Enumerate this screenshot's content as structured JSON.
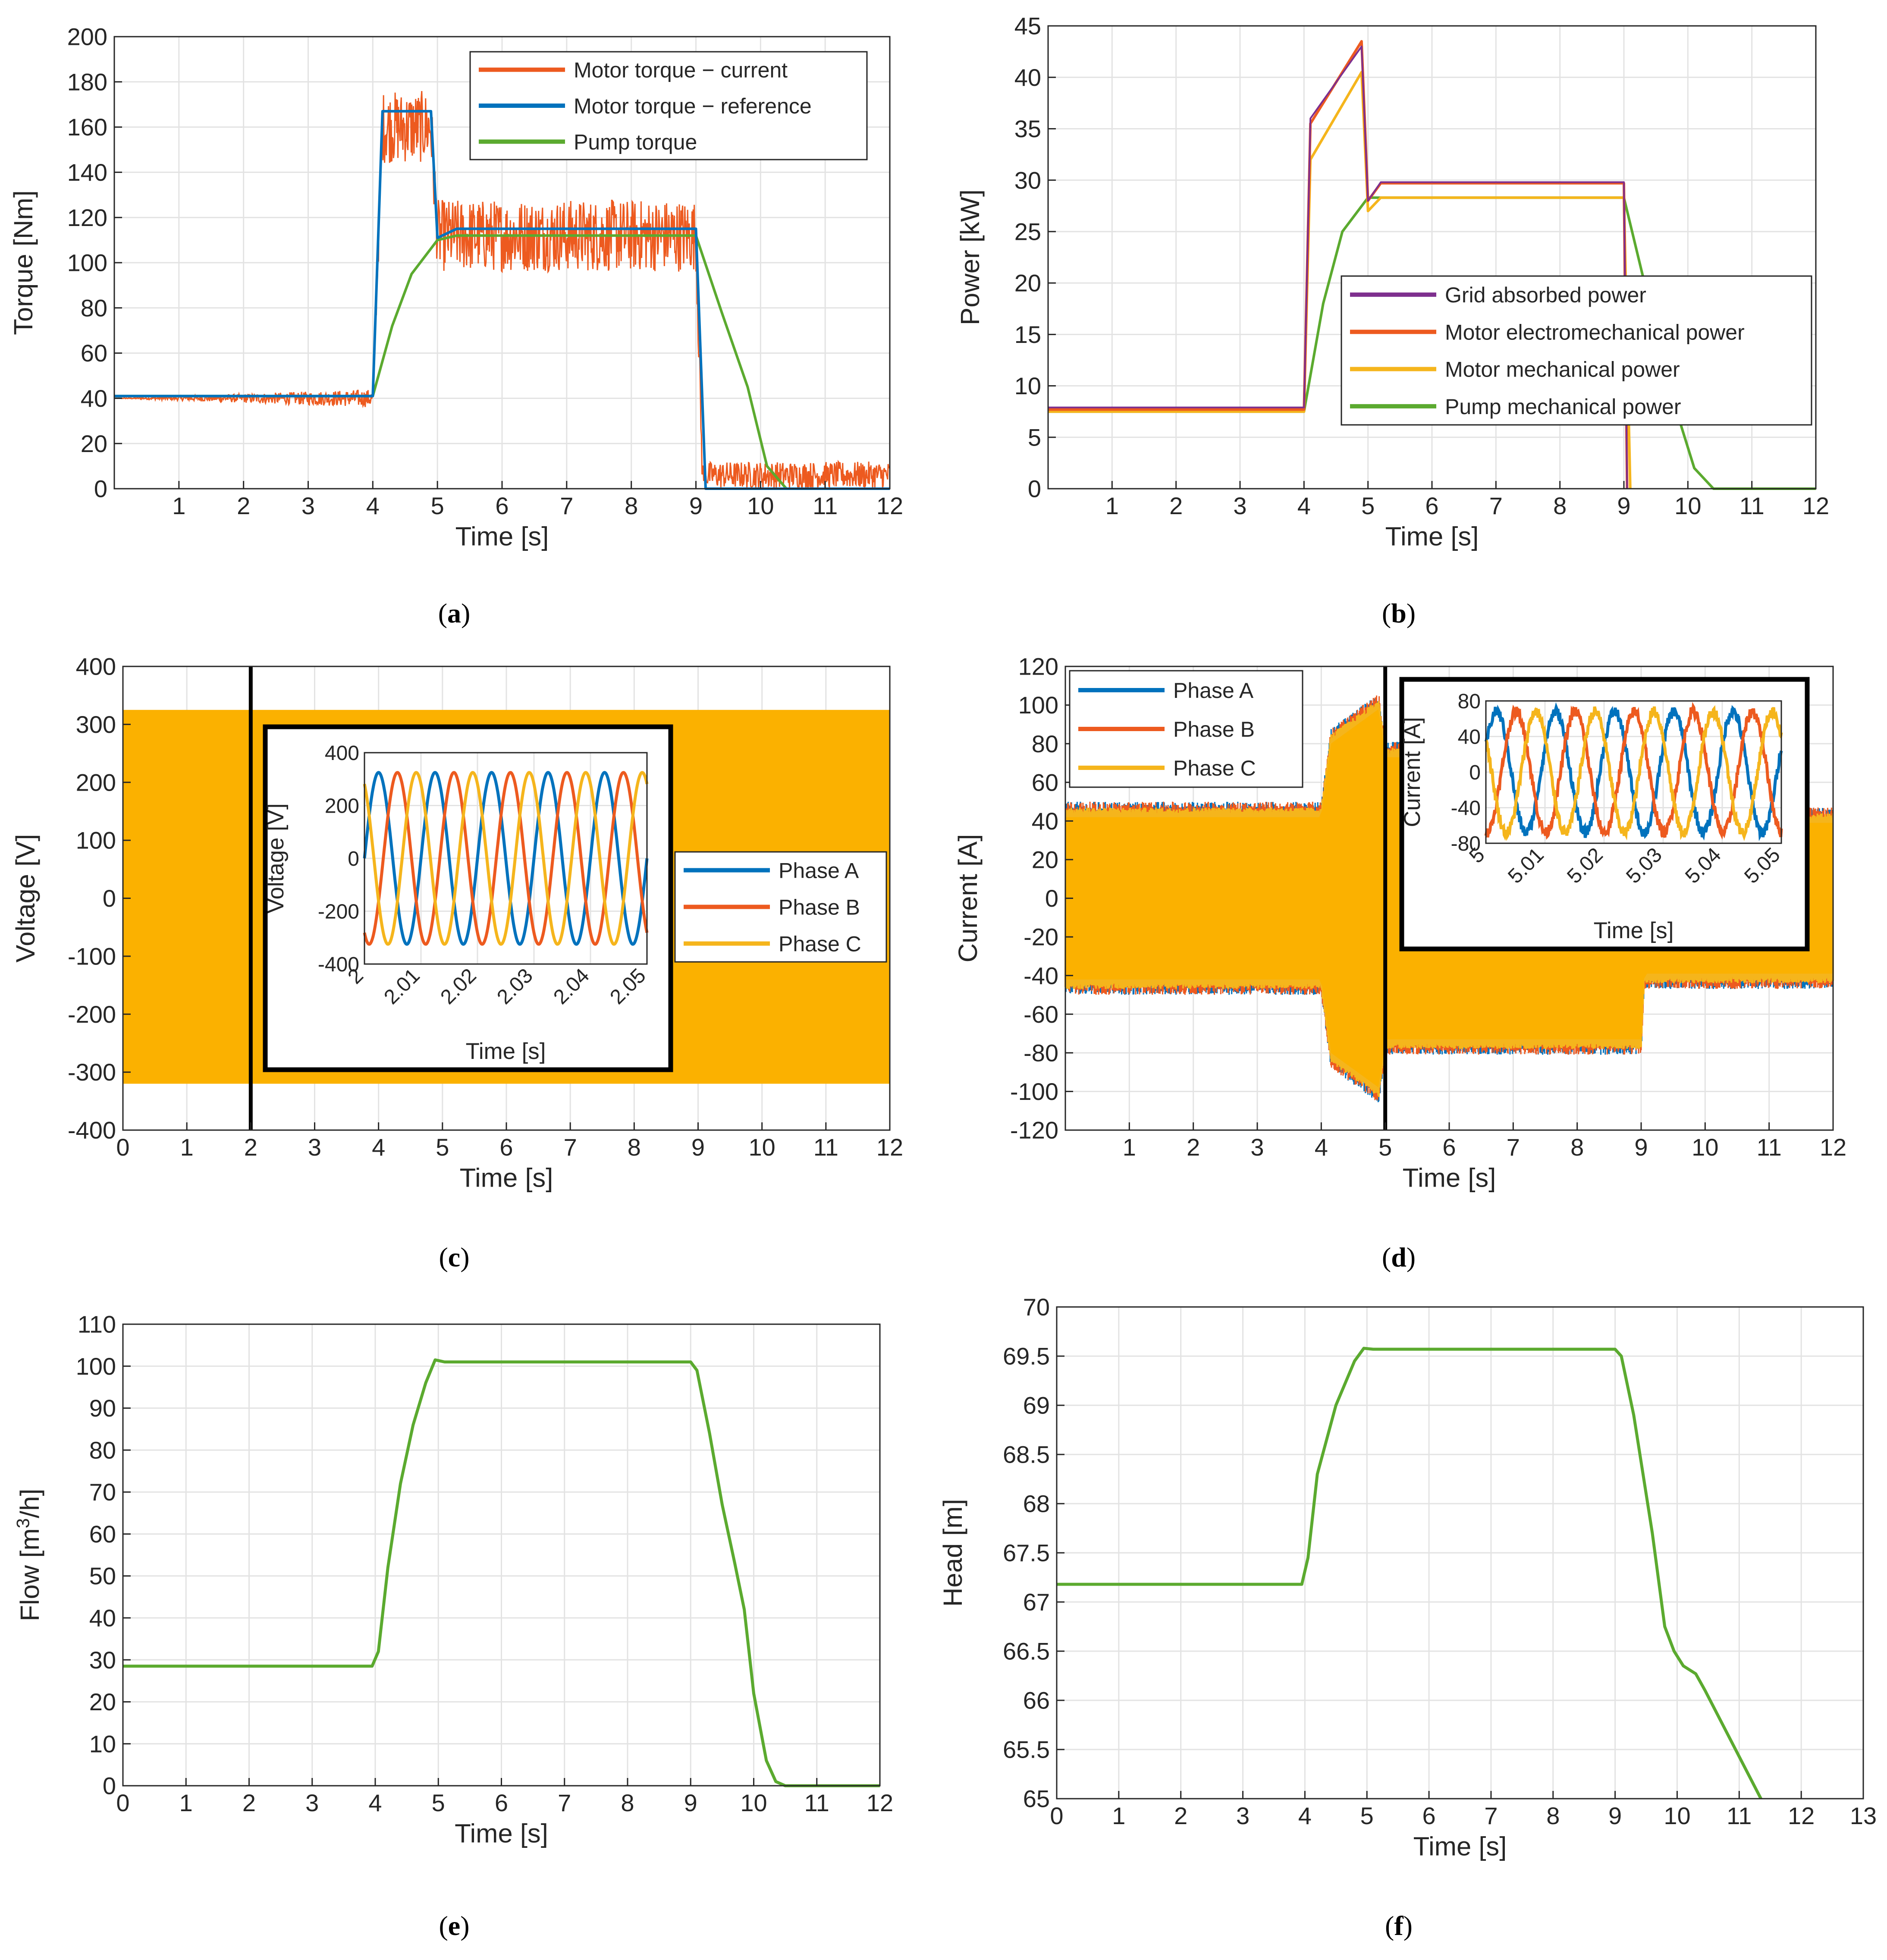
{
  "figure": {
    "captions": [
      "(a)",
      "(b)",
      "(c)",
      "(d)",
      "(e)",
      "(f)"
    ],
    "letters": [
      "a",
      "b",
      "c",
      "d",
      "e",
      "f"
    ]
  },
  "chart_data": [
    {
      "id": "a",
      "type": "line",
      "xlabel": "Time [s]",
      "ylabel": "Torque [Nm]",
      "xlim": [
        0,
        12
      ],
      "ylim": [
        0,
        200
      ],
      "xticks": [
        1,
        2,
        3,
        4,
        5,
        6,
        7,
        8,
        9,
        10,
        11,
        12
      ],
      "yticks": [
        0,
        20,
        40,
        60,
        80,
        100,
        120,
        140,
        160,
        180,
        200
      ],
      "grid": true,
      "legend_position": "top-right",
      "series": [
        {
          "name": "Motor torque − current",
          "color": "#ED5A1F",
          "noisy": true,
          "x": [
            0,
            4,
            4.15,
            4.9,
            5.0,
            9.0,
            9.1,
            12
          ],
          "y": [
            40,
            40,
            160,
            160,
            112,
            112,
            6,
            6
          ],
          "band": [
            0,
            4,
            16,
            16,
            16,
            16,
            6,
            6
          ]
        },
        {
          "name": "Motor torque − reference",
          "color": "#0072BD",
          "x": [
            0,
            4,
            4.15,
            4.9,
            5.0,
            5.3,
            9.0,
            9.15,
            12
          ],
          "y": [
            41,
            41,
            167,
            167,
            111,
            115,
            115,
            0,
            0
          ]
        },
        {
          "name": "Pump torque",
          "color": "#5BAA2F",
          "x": [
            0,
            4,
            4.3,
            4.6,
            5,
            5.3,
            9,
            9.4,
            9.8,
            10.1,
            10.4,
            12
          ],
          "y": [
            41,
            41,
            72,
            95,
            110,
            112,
            112,
            78,
            45,
            10,
            0,
            0
          ]
        }
      ]
    },
    {
      "id": "b",
      "type": "line",
      "xlabel": "Time [s]",
      "ylabel": "Power [kW]",
      "xlim": [
        0,
        12
      ],
      "ylim": [
        0,
        45
      ],
      "xticks": [
        1,
        2,
        3,
        4,
        5,
        6,
        7,
        8,
        9,
        10,
        11,
        12
      ],
      "yticks": [
        0,
        5,
        10,
        15,
        20,
        25,
        30,
        35,
        40,
        45
      ],
      "grid": true,
      "legend_position": "center-right",
      "series": [
        {
          "name": "Grid absorbed power",
          "color": "#7E2F8E",
          "x": [
            0,
            4,
            4.1,
            4.9,
            5.0,
            5.2,
            9.0,
            9.05
          ],
          "y": [
            7.9,
            7.9,
            36,
            43,
            28,
            29.8,
            29.8,
            0
          ]
        },
        {
          "name": "Motor electromechanical power",
          "color": "#ED5A1F",
          "x": [
            0,
            4,
            4.1,
            4.9,
            5.0,
            5.2,
            9.0,
            9.05
          ],
          "y": [
            7.7,
            7.7,
            35.5,
            43.5,
            28,
            29.7,
            29.7,
            0
          ]
        },
        {
          "name": "Motor mechanical power",
          "color": "#F5B51C",
          "x": [
            0,
            4,
            4.1,
            4.9,
            5.0,
            5.2,
            9.0,
            9.1
          ],
          "y": [
            7.5,
            7.5,
            32,
            40.5,
            27,
            28.3,
            28.3,
            0
          ]
        },
        {
          "name": "Pump mechanical power",
          "color": "#5BAA2F",
          "x": [
            0,
            4,
            4.3,
            4.6,
            5,
            9,
            9.4,
            9.8,
            10.1,
            10.4,
            12
          ],
          "y": [
            7.5,
            7.5,
            18,
            25,
            28.3,
            28.3,
            18,
            8,
            2,
            0,
            0
          ]
        }
      ]
    },
    {
      "id": "c",
      "type": "line",
      "xlabel": "Time [s]",
      "ylabel": "Voltage [V]",
      "xlim": [
        0,
        12
      ],
      "ylim": [
        -400,
        400
      ],
      "xticks": [
        0,
        1,
        2,
        3,
        4,
        5,
        6,
        7,
        8,
        9,
        10,
        11,
        12
      ],
      "yticks": [
        -400,
        -300,
        -200,
        -100,
        0,
        100,
        200,
        300,
        400
      ],
      "grid": true,
      "band": {
        "color": "#FBB100",
        "x": [
          0,
          12
        ],
        "min": -320,
        "max": 325
      },
      "marker_x": 2,
      "legend_position": "center-right",
      "series": [
        {
          "name": "Phase A",
          "color": "#0072BD"
        },
        {
          "name": "Phase B",
          "color": "#ED5A1F"
        },
        {
          "name": "Phase C",
          "color": "#F5B51C"
        }
      ],
      "inset": {
        "xlabel": "Time [s]",
        "ylabel": "Voltage [V]",
        "xlim": [
          2,
          2.05
        ],
        "ylim": [
          -400,
          400
        ],
        "xticks": [
          "2",
          "2.01",
          "2.02",
          "2.03",
          "2.04",
          "2.05"
        ],
        "yticks": [
          -400,
          -200,
          0,
          200,
          400
        ],
        "amplitude": 325,
        "frequency_hz": 100,
        "phases_deg": [
          0,
          -120,
          120
        ]
      }
    },
    {
      "id": "d",
      "type": "line",
      "xlabel": "Time [s]",
      "ylabel": "Current [A]",
      "xlim": [
        0,
        12
      ],
      "ylim": [
        -120,
        120
      ],
      "xticks": [
        1,
        2,
        3,
        4,
        5,
        6,
        7,
        8,
        9,
        10,
        11,
        12
      ],
      "yticks": [
        -120,
        -100,
        -80,
        -60,
        -40,
        -20,
        0,
        20,
        40,
        60,
        80,
        100,
        120
      ],
      "grid": true,
      "envelope": {
        "x": [
          0,
          4,
          4.15,
          4.9,
          5.0,
          5.2,
          9.0,
          9.05,
          12
        ],
        "amp": [
          44,
          44,
          82,
          100,
          75,
          75,
          75,
          41,
          41
        ]
      },
      "marker_x": 5,
      "legend_position": "top-left",
      "series": [
        {
          "name": "Phase A",
          "color": "#0072BD"
        },
        {
          "name": "Phase B",
          "color": "#ED5A1F"
        },
        {
          "name": "Phase C",
          "color": "#F5B51C"
        }
      ],
      "inset": {
        "xlabel": "Time [s]",
        "ylabel": "Current [A]",
        "xlim": [
          5,
          5.05
        ],
        "ylim": [
          -80,
          80
        ],
        "xticks": [
          "5",
          "5.01",
          "5.02",
          "5.03",
          "5.04",
          "5.05"
        ],
        "yticks": [
          -80,
          -40,
          0,
          40,
          80
        ],
        "amplitude": 68,
        "frequency_hz": 100,
        "phases_deg": [
          25,
          -95,
          145
        ]
      }
    },
    {
      "id": "e",
      "type": "line",
      "xlabel": "Time [s]",
      "ylabel": "Flow [m³/h]",
      "ylabel_parts": [
        "Flow [m",
        "3",
        "/h]"
      ],
      "xlim": [
        0,
        12
      ],
      "ylim": [
        0,
        110
      ],
      "xticks": [
        0,
        1,
        2,
        3,
        4,
        5,
        6,
        7,
        8,
        9,
        10,
        11,
        12
      ],
      "yticks": [
        0,
        10,
        20,
        30,
        40,
        50,
        60,
        70,
        80,
        90,
        100,
        110
      ],
      "grid": true,
      "series": [
        {
          "name": "Flow",
          "color": "#5BAA2F",
          "x": [
            0,
            3.95,
            4.05,
            4.2,
            4.4,
            4.6,
            4.8,
            4.95,
            5.1,
            9.0,
            9.1,
            9.3,
            9.5,
            9.7,
            9.85,
            10.0,
            10.2,
            10.35,
            10.5,
            12
          ],
          "y": [
            28.5,
            28.5,
            32,
            52,
            72,
            86,
            96,
            101.5,
            101,
            101,
            99,
            84,
            67,
            53,
            42,
            22,
            6,
            1,
            0,
            0
          ]
        }
      ]
    },
    {
      "id": "f",
      "type": "line",
      "xlabel": "Time [s]",
      "ylabel": "Head [m]",
      "xlim": [
        0,
        13
      ],
      "ylim": [
        65,
        70
      ],
      "xticks": [
        0,
        1,
        2,
        3,
        4,
        5,
        6,
        7,
        8,
        9,
        10,
        11,
        12,
        13
      ],
      "yticks": [
        65,
        65.5,
        66,
        66.5,
        67,
        67.5,
        68,
        68.5,
        69,
        69.5,
        70
      ],
      "grid": true,
      "series": [
        {
          "name": "Head",
          "color": "#5BAA2F",
          "x": [
            0,
            3.95,
            4.05,
            4.2,
            4.5,
            4.8,
            4.95,
            5.1,
            9.0,
            9.1,
            9.3,
            9.6,
            9.8,
            9.95,
            10.1,
            10.3,
            10.45,
            11.35
          ],
          "y": [
            67.18,
            67.18,
            67.45,
            68.3,
            69.0,
            69.45,
            69.58,
            69.57,
            69.57,
            69.5,
            68.9,
            67.7,
            66.75,
            66.5,
            66.35,
            66.27,
            66.1,
            65.0
          ]
        }
      ]
    }
  ]
}
